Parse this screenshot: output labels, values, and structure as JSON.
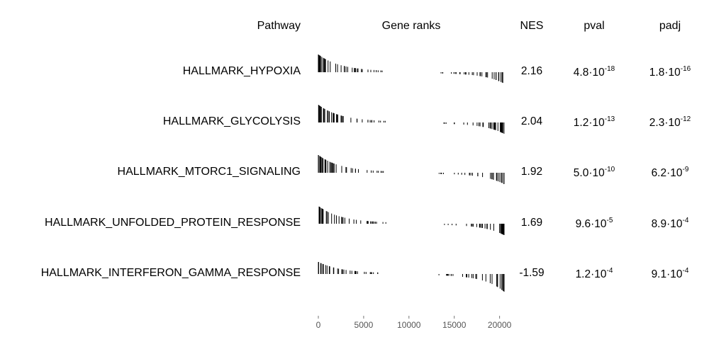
{
  "headers": {
    "pathway": "Pathway",
    "gene_ranks": "Gene ranks",
    "nes": "NES",
    "pval": "pval",
    "padj": "padj"
  },
  "chart_data": {
    "type": "table",
    "columns": [
      "Pathway",
      "Gene ranks",
      "NES",
      "pval",
      "padj"
    ],
    "x_axis": {
      "range": [
        0,
        20500
      ],
      "ticks": [
        0,
        5000,
        10000,
        15000,
        20000
      ],
      "tick_labels": [
        "0",
        "5000",
        "10000",
        "15000",
        "20000"
      ]
    },
    "rows": [
      {
        "pathway": "HALLMARK_HYPOXIA",
        "nes": "2.16",
        "pval": {
          "mantissa": "4.8",
          "exponent": "-18"
        },
        "padj": {
          "mantissa": "1.8",
          "exponent": "-16"
        }
      },
      {
        "pathway": "HALLMARK_GLYCOLYSIS",
        "nes": "2.04",
        "pval": {
          "mantissa": "1.2",
          "exponent": "-13"
        },
        "padj": {
          "mantissa": "2.3",
          "exponent": "-12"
        }
      },
      {
        "pathway": "HALLMARK_MTORC1_SIGNALING",
        "nes": "1.92",
        "pval": {
          "mantissa": "5.0",
          "exponent": "-10"
        },
        "padj": {
          "mantissa": "6.2",
          "exponent": "-9"
        }
      },
      {
        "pathway": "HALLMARK_UNFOLDED_PROTEIN_RESPONSE",
        "nes": "1.69",
        "pval": {
          "mantissa": "9.6",
          "exponent": "-5"
        },
        "padj": {
          "mantissa": "8.9",
          "exponent": "-4"
        }
      },
      {
        "pathway": "HALLMARK_INTERFERON_GAMMA_RESPONSE",
        "nes": "-1.59",
        "pval": {
          "mantissa": "1.2",
          "exponent": "-4"
        },
        "padj": {
          "mantissa": "9.1",
          "exponent": "-4"
        }
      }
    ]
  }
}
